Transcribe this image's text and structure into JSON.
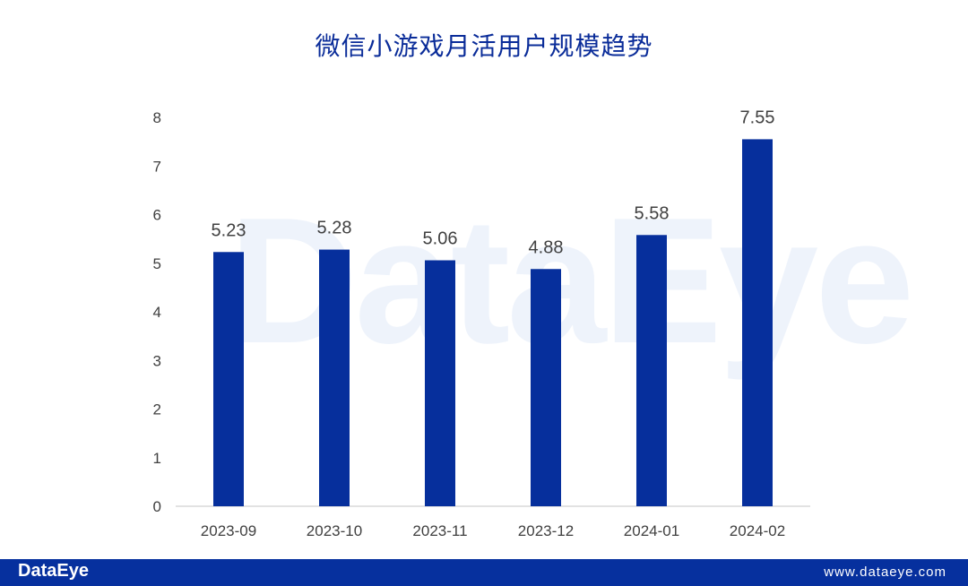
{
  "header": {
    "title": "微信小游戏月活用户规模趋势"
  },
  "watermark": "DataEye",
  "footer": {
    "brand": "DataEye",
    "site": "www.dataeye.com"
  },
  "colors": {
    "bar": "#062f9c",
    "title": "#0a2c99",
    "footer": "#06309e",
    "tick": "#404040",
    "axis": "#d9d9d9"
  },
  "chart_data": {
    "type": "bar",
    "title": "微信小游戏月活用户规模趋势",
    "xlabel": "",
    "ylabel": "",
    "categories": [
      "2023-09",
      "2023-10",
      "2023-11",
      "2023-12",
      "2024-01",
      "2024-02"
    ],
    "values": [
      5.23,
      5.28,
      5.06,
      4.88,
      5.58,
      7.55
    ],
    "data_labels": [
      "5.23",
      "5.28",
      "5.06",
      "4.88",
      "5.58",
      "7.55"
    ],
    "ylim": [
      0,
      8
    ],
    "yticks": [
      "0",
      "1",
      "2",
      "3",
      "4",
      "5",
      "6",
      "7",
      "8"
    ],
    "grid": false,
    "legend": "none"
  }
}
